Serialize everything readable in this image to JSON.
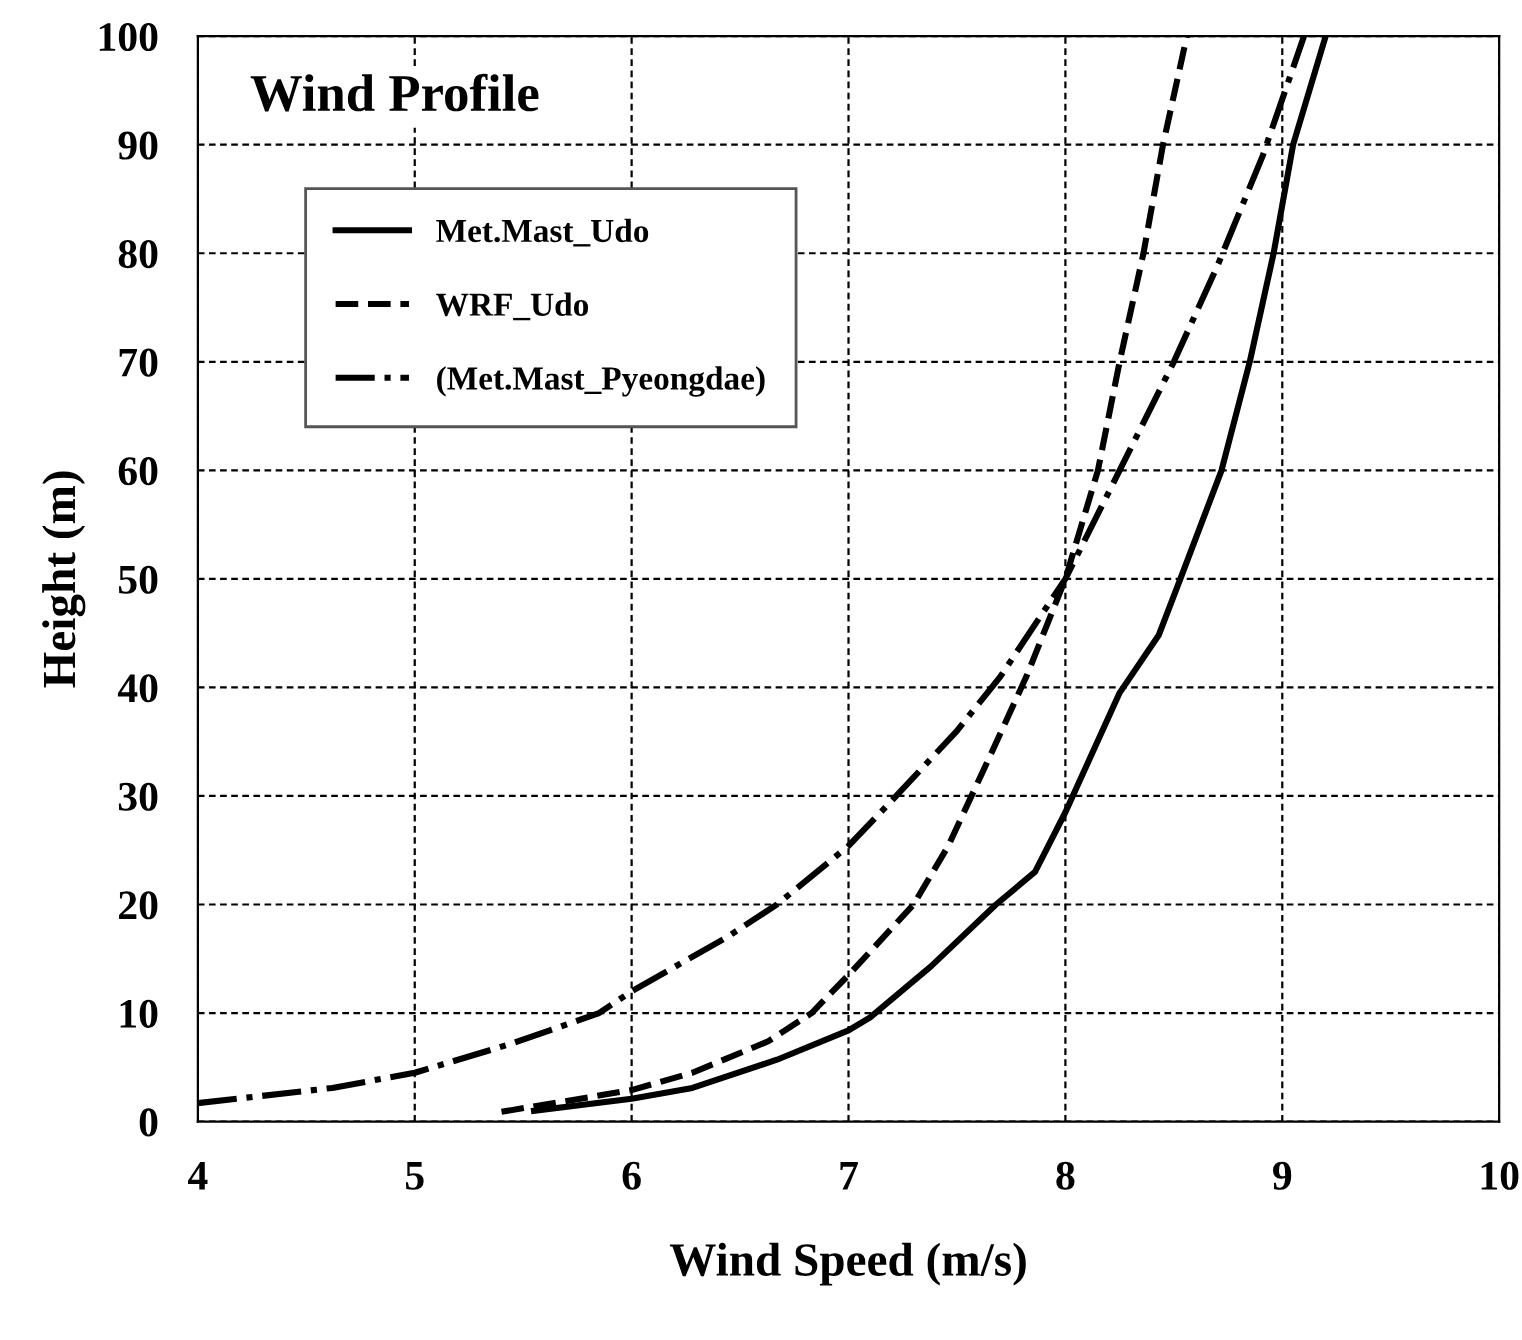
{
  "chart_data": {
    "type": "line",
    "title": "Wind Profile",
    "xlabel": "Wind Speed (m/s)",
    "ylabel": "Height (m)",
    "xlim": [
      4,
      10
    ],
    "ylim": [
      0,
      100
    ],
    "xticks": [
      4,
      5,
      6,
      7,
      8,
      9,
      10
    ],
    "yticks": [
      0,
      10,
      20,
      30,
      40,
      50,
      60,
      70,
      80,
      90,
      100
    ],
    "grid": true,
    "legend": "top left",
    "marker": "none",
    "series": [
      {
        "name": "Met.Mast_Udo",
        "color": "#000000",
        "line_style": "solid",
        "x": [
          5.55,
          6.0,
          6.28,
          6.67,
          7.0,
          7.1,
          7.38,
          7.68,
          7.86,
          8.0,
          8.25,
          8.43,
          8.53,
          8.72,
          8.85,
          8.96,
          9.05,
          9.2
        ],
        "values": [
          1,
          2.1,
          3.1,
          5.7,
          8.4,
          9.6,
          14.3,
          20,
          23,
          28.5,
          39.5,
          44.8,
          50,
          60,
          70,
          80,
          90,
          100
        ]
      },
      {
        "name": "WRF_Udo",
        "color": "#000000",
        "line_style": "dashed",
        "x": [
          5.4,
          6.0,
          6.28,
          6.63,
          6.83,
          7.0,
          7.3,
          7.46,
          7.66,
          7.82,
          8.0,
          8.15,
          8.25,
          8.36,
          8.45,
          8.56
        ],
        "values": [
          0.9,
          2.9,
          4.5,
          7.4,
          10,
          13.5,
          20,
          25.4,
          34,
          41,
          50,
          60,
          70,
          80,
          90,
          100
        ]
      },
      {
        "name": "(Met.Mast_Pyeongdae)",
        "color": "#000000",
        "line_style": "dashdot",
        "x": [
          4.0,
          4.62,
          5.0,
          5.45,
          5.85,
          6.0,
          6.44,
          6.67,
          7.0,
          7.22,
          7.5,
          7.7,
          8.0,
          8.25,
          8.5,
          8.7,
          8.91,
          9.1
        ],
        "values": [
          1.7,
          3.1,
          4.5,
          7.2,
          10,
          12,
          17,
          20,
          25.4,
          30,
          36,
          41,
          50,
          60,
          70,
          78.8,
          89,
          100
        ]
      }
    ]
  }
}
